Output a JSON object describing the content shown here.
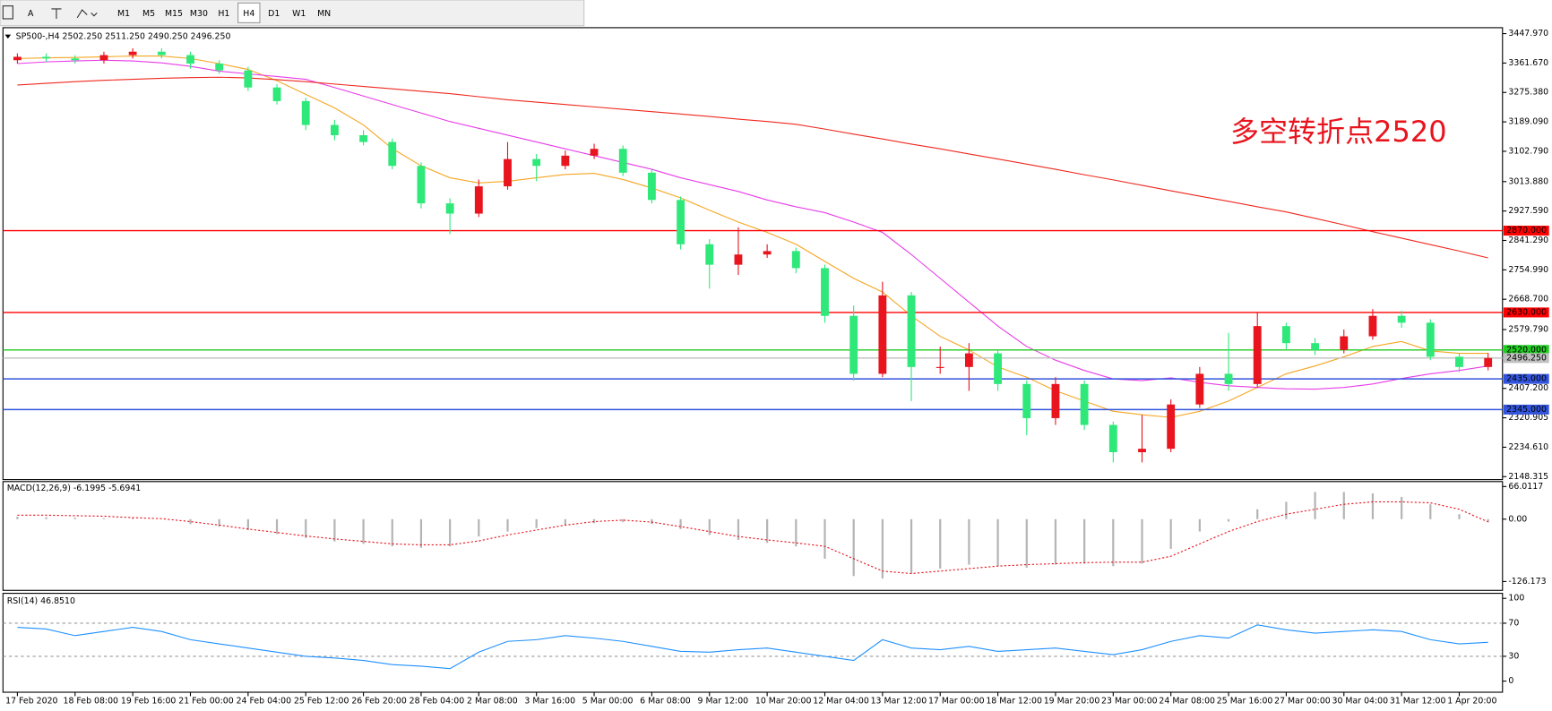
{
  "toolbar": {
    "buttons": [
      "A"
    ],
    "timeframes": [
      "M1",
      "M5",
      "M15",
      "M30",
      "H1",
      "H4",
      "D1",
      "W1",
      "MN"
    ],
    "active": "H4"
  },
  "chart_data": [
    {
      "type": "candlestick",
      "title": "SP500-,H4  2502.250 2511.250 2490.250 2496.250",
      "annotation": "多空转折点2520",
      "categories": [
        "17 Feb 2020",
        null,
        "18 Feb 08:00",
        null,
        "19 Feb 16:00",
        null,
        "21 Feb 00:00",
        null,
        "24 Feb 04:00",
        null,
        "25 Feb 12:00",
        null,
        "26 Feb 20:00",
        null,
        "28 Feb 04:00",
        null,
        "2 Mar 08:00",
        null,
        "3 Mar 16:00",
        null,
        "5 Mar 00:00",
        null,
        "6 Mar 08:00",
        null,
        "9 Mar 12:00",
        null,
        "10 Mar 20:00",
        null,
        "12 Mar 04:00",
        null,
        "13 Mar 12:00",
        null,
        "17 Mar 00:00",
        null,
        "18 Mar 12:00",
        null,
        "19 Mar 20:00",
        null,
        "23 Mar 00:00",
        null,
        "24 Mar 08:00",
        null,
        "25 Mar 16:00",
        null,
        "27 Mar 00:00",
        null,
        "30 Mar 04:00",
        null,
        "31 Mar 12:00",
        null,
        "1 Apr 20:00",
        null
      ],
      "open": [
        3370,
        3380,
        3375,
        3370,
        3385,
        3395,
        3385,
        3360,
        3340,
        3290,
        3250,
        3180,
        3150,
        3130,
        3060,
        2950,
        2920,
        3000,
        3080,
        3060,
        3090,
        3110,
        3040,
        2960,
        2830,
        2770,
        2800,
        2810,
        2760,
        2620,
        2450,
        2680,
        2470,
        2470,
        2510,
        2420,
        2320,
        2420,
        2300,
        2220,
        2230,
        2360,
        2450,
        2420,
        2590,
        2540,
        2520,
        2560,
        2620,
        2600,
        2500,
        2470
      ],
      "high": [
        3390,
        3390,
        3385,
        3395,
        3405,
        3405,
        3395,
        3370,
        3350,
        3300,
        3260,
        3195,
        3165,
        3140,
        3070,
        2965,
        3020,
        3130,
        3095,
        3105,
        3125,
        3120,
        3050,
        2970,
        2845,
        2880,
        2830,
        2820,
        2770,
        2650,
        2720,
        2690,
        2530,
        2540,
        2520,
        2430,
        2440,
        2430,
        2310,
        2330,
        2375,
        2470,
        2570,
        2630,
        2600,
        2555,
        2580,
        2640,
        2635,
        2610,
        2510,
        2511.25
      ],
      "low": [
        3360,
        3365,
        3360,
        3360,
        3375,
        3375,
        3345,
        3330,
        3280,
        3240,
        3165,
        3135,
        3120,
        3050,
        2935,
        2860,
        2910,
        2990,
        3015,
        3050,
        3080,
        3030,
        2950,
        2815,
        2700,
        2740,
        2790,
        2745,
        2600,
        2430,
        2440,
        2370,
        2450,
        2400,
        2400,
        2270,
        2300,
        2285,
        2190,
        2190,
        2220,
        2350,
        2400,
        2410,
        2520,
        2505,
        2510,
        2550,
        2585,
        2490,
        2455,
        2460
      ],
      "close": [
        3380,
        3375,
        3370,
        3385,
        3395,
        3385,
        3360,
        3340,
        3290,
        3250,
        3180,
        3150,
        3130,
        3060,
        2950,
        2920,
        3000,
        3080,
        3060,
        3090,
        3110,
        3040,
        2960,
        2830,
        2770,
        2800,
        2810,
        2760,
        2620,
        2450,
        2680,
        2470,
        2470,
        2510,
        2420,
        2320,
        2420,
        2300,
        2220,
        2230,
        2360,
        2450,
        2420,
        2590,
        2540,
        2520,
        2560,
        2620,
        2600,
        2500,
        2470,
        2496.25
      ],
      "up_color": "#e8141e",
      "down_color": "#2ee87a",
      "series": [
        {
          "color": "#f5a623",
          "values": [
            3375,
            3377,
            3378,
            3380,
            3382,
            3382,
            3375,
            3360,
            3343,
            3310,
            3270,
            3230,
            3180,
            3111,
            3060,
            3025,
            3010,
            3015,
            3025,
            3035,
            3038,
            3020,
            2995,
            2966,
            2930,
            2895,
            2865,
            2830,
            2780,
            2730,
            2690,
            2620,
            2560,
            2520,
            2470,
            2440,
            2400,
            2370,
            2340,
            2330,
            2322,
            2340,
            2370,
            2410,
            2450,
            2473,
            2500,
            2530,
            2545,
            2517,
            2510,
            2510
          ]
        },
        {
          "color": "#e83ce8",
          "values": [
            3360,
            3365,
            3368,
            3370,
            3368,
            3362,
            3352,
            3338,
            3330,
            3322,
            3314,
            3290,
            3265,
            3240,
            3215,
            3190,
            3170,
            3150,
            3130,
            3110,
            3090,
            3070,
            3050,
            3025,
            3005,
            2985,
            2960,
            2940,
            2923,
            2895,
            2865,
            2800,
            2730,
            2660,
            2590,
            2530,
            2490,
            2460,
            2435,
            2430,
            2438,
            2425,
            2415,
            2410,
            2406,
            2405,
            2410,
            2420,
            2436,
            2450,
            2460,
            2473
          ]
        },
        {
          "color": "#f0281e",
          "values": [
            3297,
            3302,
            3307,
            3311,
            3314,
            3317,
            3319,
            3320,
            3318,
            3313,
            3307,
            3300,
            3293,
            3286,
            3279,
            3272,
            3263,
            3254,
            3247,
            3240,
            3233,
            3226,
            3219,
            3212,
            3205,
            3197,
            3190,
            3182,
            3168,
            3153,
            3139,
            3124,
            3110,
            3095,
            3080,
            3065,
            3050,
            3034,
            3019,
            3003,
            2987,
            2971,
            2956,
            2940,
            2925,
            2906,
            2887,
            2867,
            2848,
            2829,
            2810,
            2790
          ]
        }
      ],
      "levels": [
        {
          "value": 2870,
          "label": "2870.000",
          "color": "#ff0000",
          "text_color": "#ffffff"
        },
        {
          "value": 2630,
          "label": "2630.000",
          "color": "#ff0000",
          "text_color": "#ffffff"
        },
        {
          "value": 2520,
          "label": "2520.000",
          "color": "#22cc22",
          "text_color": "#ffffff"
        },
        {
          "value": 2496.25,
          "label": "2496.250",
          "color": "#c0c0c0",
          "text_color": "#000000"
        },
        {
          "value": 2435,
          "label": "2435.000",
          "color": "#3355dd",
          "text_color": "#ffffff"
        },
        {
          "value": 2345,
          "label": "2345.000",
          "color": "#3355dd",
          "text_color": "#ffffff"
        }
      ],
      "ylim": [
        2139.6,
        3465.4
      ],
      "yticks": [
        {
          "value": 3447.97,
          "label": "3447.970"
        },
        {
          "value": 3361.67,
          "label": "3361.670"
        },
        {
          "value": 3275.38,
          "label": "3275.380"
        },
        {
          "value": 3189.09,
          "label": "3189.090"
        },
        {
          "value": 3102.79,
          "label": "3102.790"
        },
        {
          "value": 3013.88,
          "label": "3013.880"
        },
        {
          "value": 2927.59,
          "label": "2927.590"
        },
        {
          "value": 2841.29,
          "label": "2841.290"
        },
        {
          "value": 2754.99,
          "label": "2754.990"
        },
        {
          "value": 2668.7,
          "label": "2668.700"
        },
        {
          "value": 2579.79,
          "label": "2579.790"
        },
        {
          "value": 2407.2,
          "label": "2407.200"
        },
        2320.905,
        {
          "value": 2234.61,
          "label": "2234.610"
        },
        2148.315
      ]
    },
    {
      "type": "macd",
      "title": "MACD(12,26,9) -6.1995 -5.6941",
      "series": [
        {
          "color": "#b4b4b4",
          "values": [
            5,
            4,
            3,
            2,
            2,
            0,
            -10,
            -15,
            -22,
            -30,
            -38,
            -45,
            -50,
            -55,
            -58,
            -55,
            -35,
            -25,
            -18,
            -12,
            -8,
            -6,
            -10,
            -20,
            -32,
            -42,
            -48,
            -55,
            -80,
            -115,
            -120,
            -110,
            -100,
            -92,
            -95,
            -98,
            -92,
            -90,
            -95,
            -90,
            -60,
            -25,
            -5,
            20,
            35,
            55,
            55,
            52,
            45,
            30,
            10,
            -6.1995
          ]
        },
        {
          "color": "#e8141e",
          "values": [
            8,
            8,
            7,
            6,
            3,
            1,
            -5,
            -12,
            -20,
            -27,
            -34,
            -40,
            -45,
            -50,
            -52,
            -52,
            -44,
            -32,
            -22,
            -12,
            -5,
            -2,
            -6,
            -15,
            -25,
            -35,
            -42,
            -48,
            -55,
            -80,
            -105,
            -110,
            -105,
            -100,
            -95,
            -92,
            -90,
            -88,
            -87,
            -87,
            -75,
            -50,
            -25,
            -5,
            10,
            20,
            30,
            35,
            35,
            33,
            20,
            -5.6941
          ]
        }
      ],
      "ylim": [
        -144,
        76
      ],
      "yticks": [
        66.0117,
        {
          "value": 0,
          "label": "0.00"
        },
        -126.173
      ]
    },
    {
      "type": "rsi",
      "title": "RSI(14) 46.8510",
      "color": "#1e90ff",
      "values": [
        65,
        63,
        55,
        60,
        65,
        60,
        50,
        45,
        40,
        35,
        30,
        28,
        25,
        20,
        18,
        15,
        35,
        48,
        50,
        55,
        52,
        48,
        42,
        36,
        35,
        38,
        40,
        35,
        30,
        25,
        50,
        40,
        38,
        42,
        36,
        38,
        40,
        36,
        32,
        38,
        48,
        55,
        52,
        68,
        62,
        58,
        60,
        62,
        60,
        50,
        45,
        46.851
      ],
      "levels": [
        70,
        30
      ],
      "ylim": [
        -13.4,
        106.1
      ],
      "yticks": [
        100,
        70,
        30,
        0
      ]
    }
  ]
}
